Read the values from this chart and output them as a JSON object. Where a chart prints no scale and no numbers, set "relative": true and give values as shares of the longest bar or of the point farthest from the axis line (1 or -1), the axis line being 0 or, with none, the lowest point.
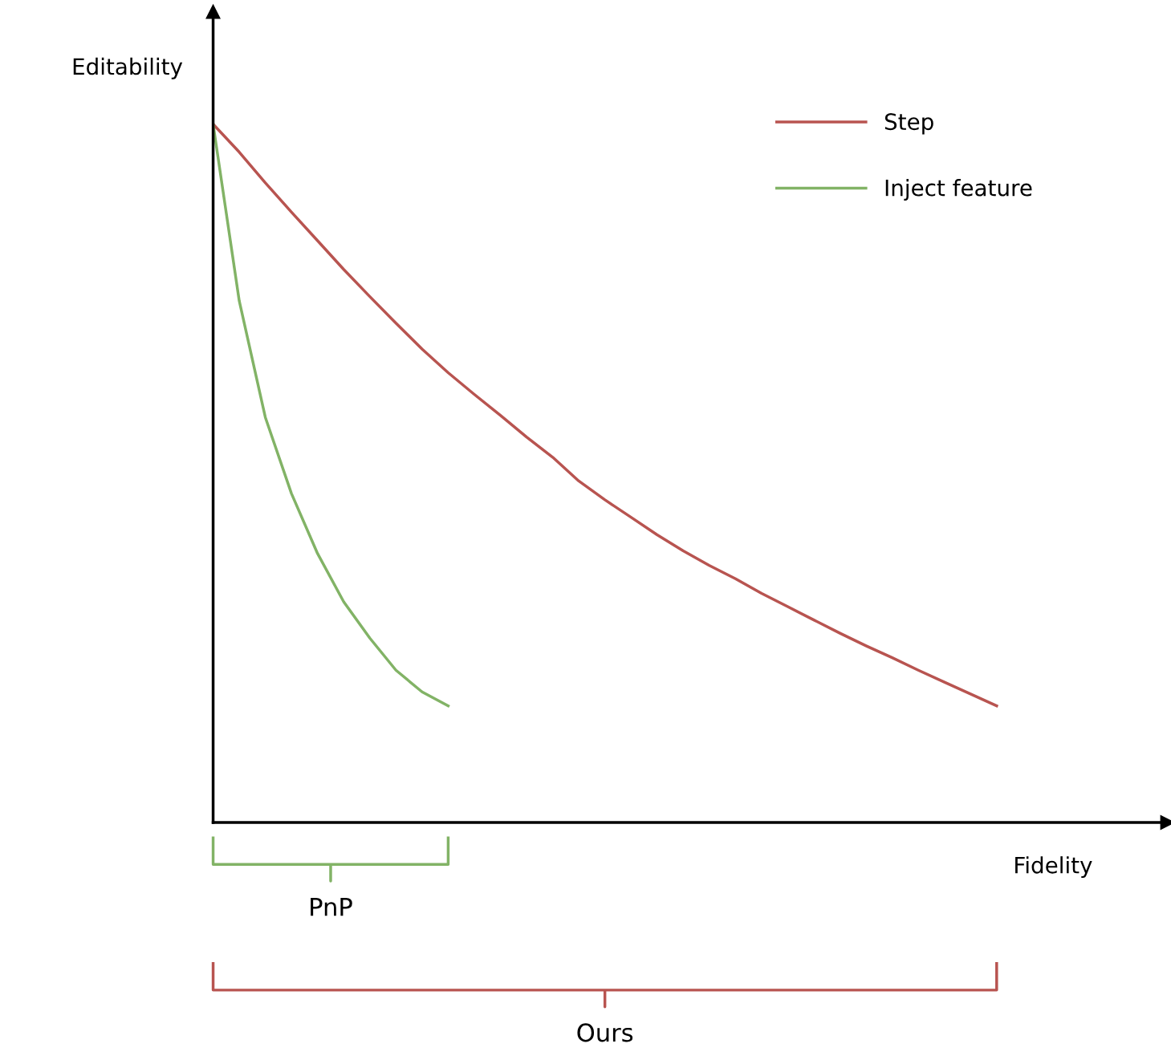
{
  "chart_data": {
    "type": "line",
    "relative": true,
    "xlabel": "Fidelity",
    "ylabel": "Editability",
    "legend": "top right",
    "marker": "none",
    "line_style": "solid",
    "categories": [
      null,
      null,
      null,
      null,
      null,
      null,
      null,
      null,
      null,
      null,
      null,
      null,
      null,
      null,
      null,
      null,
      null,
      null,
      null,
      null,
      null,
      null,
      null,
      null,
      null,
      null,
      null,
      null,
      null,
      null,
      null
    ],
    "series": [
      {
        "name": "Step",
        "color": "#b85450",
        "values": [
          1,
          0.96,
          0.916,
          0.874,
          0.833,
          0.792,
          0.753,
          0.715,
          0.678,
          0.644,
          0.613,
          0.583,
          0.552,
          0.523,
          0.489,
          0.462,
          0.437,
          0.412,
          0.389,
          0.368,
          0.349,
          0.328,
          0.309,
          0.29,
          0.271,
          0.253,
          0.236,
          0.218,
          0.201,
          0.184,
          0.167
        ]
      },
      {
        "name": "Inject feature",
        "color": "#82b366",
        "values": [
          1,
          0.747,
          0.58,
          0.471,
          0.385,
          0.316,
          0.264,
          0.218,
          0.187,
          0.167,
          null,
          null,
          null,
          null,
          null,
          null,
          null,
          null,
          null,
          null,
          null,
          null,
          null,
          null,
          null,
          null,
          null,
          null,
          null,
          null,
          null
        ]
      }
    ],
    "annotations": [
      "Ours",
      "PnP"
    ]
  }
}
